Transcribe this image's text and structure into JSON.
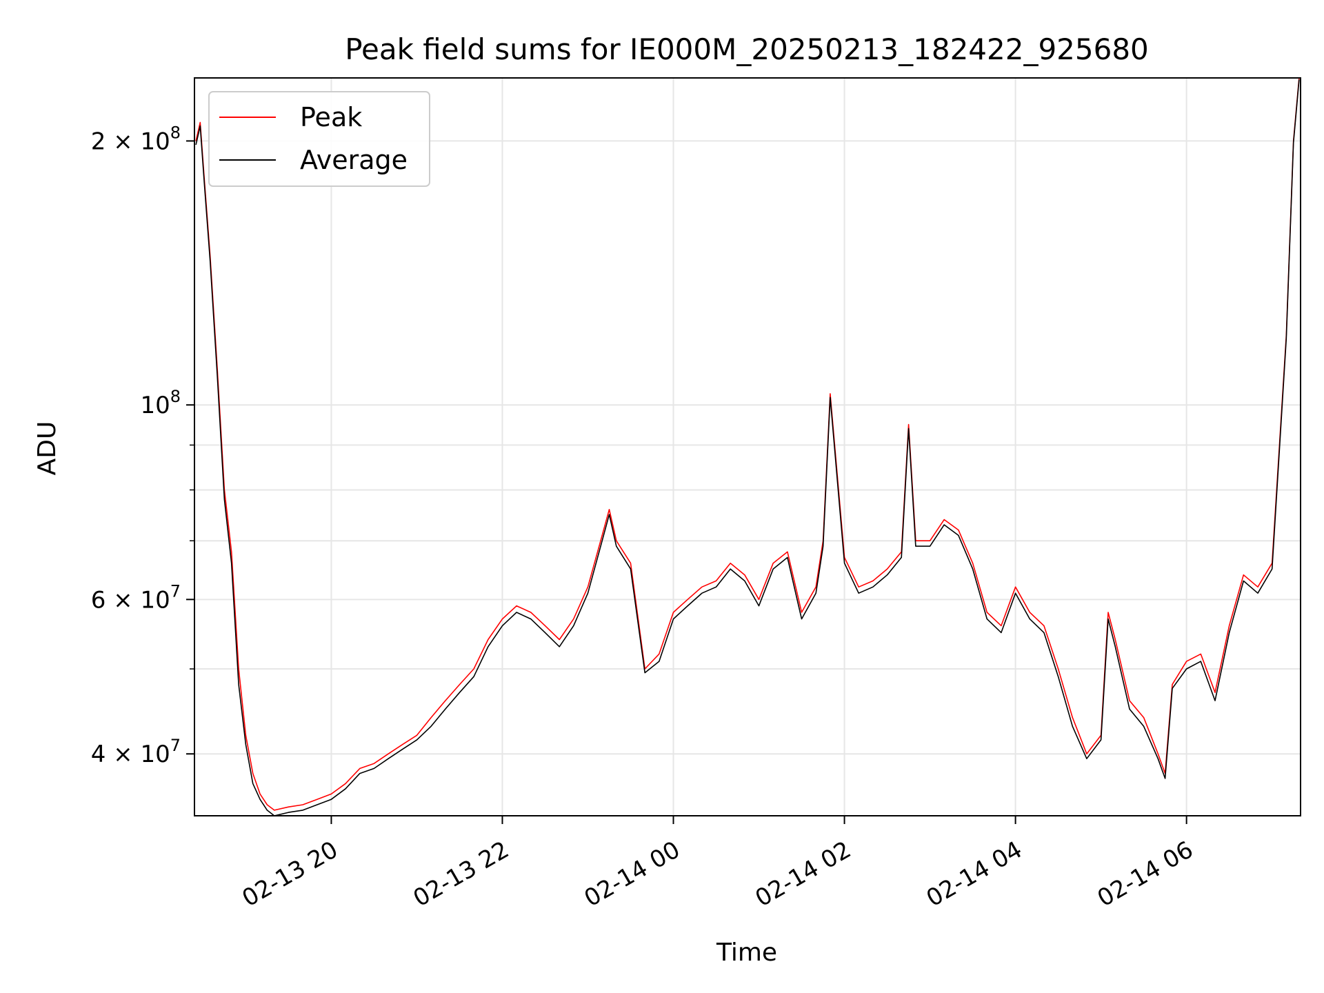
{
  "chart_data": {
    "type": "line",
    "title": "Peak field sums for IE000M_20250213_182422_925680",
    "xlabel": "Time",
    "ylabel": "ADU",
    "yscale": "log",
    "ylim": [
      34000000,
      236000000
    ],
    "xlim": [
      "2025-02-13 18:24",
      "2025-02-14 07:20"
    ],
    "grid": true,
    "legend": "upper left",
    "x_ticks": [
      {
        "t": "2025-02-13 20:00",
        "label": "02-13 20"
      },
      {
        "t": "2025-02-13 22:00",
        "label": "02-13 22"
      },
      {
        "t": "2025-02-14 00:00",
        "label": "02-14 00"
      },
      {
        "t": "2025-02-14 02:00",
        "label": "02-14 02"
      },
      {
        "t": "2025-02-14 04:00",
        "label": "02-14 04"
      },
      {
        "t": "2025-02-14 06:00",
        "label": "02-14 06"
      }
    ],
    "y_major_ticks": [
      {
        "v": 40000000,
        "mant": "4",
        "exp": "7"
      },
      {
        "v": 60000000,
        "mant": "6",
        "exp": "7"
      },
      {
        "v": 100000000,
        "mant": "",
        "exp": "8"
      },
      {
        "v": 200000000,
        "mant": "2",
        "exp": "8"
      }
    ],
    "y_minor_ticks": [
      50000000,
      70000000,
      80000000,
      90000000
    ],
    "series": [
      {
        "name": "Peak",
        "color": "#ff0000",
        "x": [
          "2025-02-13 18:25",
          "2025-02-13 18:28",
          "2025-02-13 18:31",
          "2025-02-13 18:35",
          "2025-02-13 18:40",
          "2025-02-13 18:45",
          "2025-02-13 18:50",
          "2025-02-13 18:55",
          "2025-02-13 19:00",
          "2025-02-13 19:05",
          "2025-02-13 19:10",
          "2025-02-13 19:15",
          "2025-02-13 19:20",
          "2025-02-13 19:30",
          "2025-02-13 19:40",
          "2025-02-13 19:50",
          "2025-02-13 20:00",
          "2025-02-13 20:10",
          "2025-02-13 20:20",
          "2025-02-13 20:30",
          "2025-02-13 20:40",
          "2025-02-13 20:50",
          "2025-02-13 21:00",
          "2025-02-13 21:10",
          "2025-02-13 21:20",
          "2025-02-13 21:30",
          "2025-02-13 21:40",
          "2025-02-13 21:50",
          "2025-02-13 22:00",
          "2025-02-13 22:10",
          "2025-02-13 22:20",
          "2025-02-13 22:30",
          "2025-02-13 22:40",
          "2025-02-13 22:50",
          "2025-02-13 23:00",
          "2025-02-13 23:10",
          "2025-02-13 23:15",
          "2025-02-13 23:20",
          "2025-02-13 23:30",
          "2025-02-13 23:40",
          "2025-02-13 23:50",
          "2025-02-14 00:00",
          "2025-02-14 00:10",
          "2025-02-14 00:20",
          "2025-02-14 00:30",
          "2025-02-14 00:40",
          "2025-02-14 00:50",
          "2025-02-14 01:00",
          "2025-02-14 01:10",
          "2025-02-14 01:20",
          "2025-02-14 01:30",
          "2025-02-14 01:40",
          "2025-02-14 01:45",
          "2025-02-14 01:50",
          "2025-02-14 02:00",
          "2025-02-14 02:10",
          "2025-02-14 02:20",
          "2025-02-14 02:30",
          "2025-02-14 02:40",
          "2025-02-14 02:45",
          "2025-02-14 02:50",
          "2025-02-14 03:00",
          "2025-02-14 03:10",
          "2025-02-14 03:20",
          "2025-02-14 03:30",
          "2025-02-14 03:40",
          "2025-02-14 03:50",
          "2025-02-14 04:00",
          "2025-02-14 04:10",
          "2025-02-14 04:20",
          "2025-02-14 04:30",
          "2025-02-14 04:40",
          "2025-02-14 04:50",
          "2025-02-14 05:00",
          "2025-02-14 05:05",
          "2025-02-14 05:10",
          "2025-02-14 05:20",
          "2025-02-14 05:30",
          "2025-02-14 05:40",
          "2025-02-14 05:45",
          "2025-02-14 05:50",
          "2025-02-14 06:00",
          "2025-02-14 06:10",
          "2025-02-14 06:20",
          "2025-02-14 06:30",
          "2025-02-14 06:40",
          "2025-02-14 06:50",
          "2025-02-14 07:00",
          "2025-02-14 07:10",
          "2025-02-14 07:15",
          "2025-02-14 07:19"
        ],
        "values": [
          200000000,
          210000000,
          180000000,
          148000000,
          110000000,
          80000000,
          68000000,
          50000000,
          42000000,
          38000000,
          36000000,
          35000000,
          34500000,
          34800000,
          35000000,
          35500000,
          36000000,
          37000000,
          38500000,
          39000000,
          40000000,
          41000000,
          42000000,
          44000000,
          46000000,
          48000000,
          50000000,
          54000000,
          57000000,
          59000000,
          58000000,
          56000000,
          54000000,
          57000000,
          62000000,
          71000000,
          76000000,
          70000000,
          66000000,
          50000000,
          52000000,
          58000000,
          60000000,
          62000000,
          63000000,
          66000000,
          64000000,
          60000000,
          66000000,
          68000000,
          58000000,
          62000000,
          70000000,
          103000000,
          67000000,
          62000000,
          63000000,
          65000000,
          68000000,
          95000000,
          70000000,
          70000000,
          74000000,
          72000000,
          66000000,
          58000000,
          56000000,
          62000000,
          58000000,
          56000000,
          50000000,
          44000000,
          40000000,
          42000000,
          58000000,
          54000000,
          46000000,
          44000000,
          40000000,
          38000000,
          48000000,
          51000000,
          52000000,
          47000000,
          56000000,
          64000000,
          62000000,
          66000000,
          120000000,
          200000000,
          236000000
        ]
      },
      {
        "name": "Average",
        "color": "#000000",
        "x": [
          "2025-02-13 18:25",
          "2025-02-13 18:28",
          "2025-02-13 18:31",
          "2025-02-13 18:35",
          "2025-02-13 18:40",
          "2025-02-13 18:45",
          "2025-02-13 18:50",
          "2025-02-13 18:55",
          "2025-02-13 19:00",
          "2025-02-13 19:05",
          "2025-02-13 19:10",
          "2025-02-13 19:15",
          "2025-02-13 19:20",
          "2025-02-13 19:30",
          "2025-02-13 19:40",
          "2025-02-13 19:50",
          "2025-02-13 20:00",
          "2025-02-13 20:10",
          "2025-02-13 20:20",
          "2025-02-13 20:30",
          "2025-02-13 20:40",
          "2025-02-13 20:50",
          "2025-02-13 21:00",
          "2025-02-13 21:10",
          "2025-02-13 21:20",
          "2025-02-13 21:30",
          "2025-02-13 21:40",
          "2025-02-13 21:50",
          "2025-02-13 22:00",
          "2025-02-13 22:10",
          "2025-02-13 22:20",
          "2025-02-13 22:30",
          "2025-02-13 22:40",
          "2025-02-13 22:50",
          "2025-02-13 23:00",
          "2025-02-13 23:10",
          "2025-02-13 23:15",
          "2025-02-13 23:20",
          "2025-02-13 23:30",
          "2025-02-13 23:40",
          "2025-02-13 23:50",
          "2025-02-14 00:00",
          "2025-02-14 00:10",
          "2025-02-14 00:20",
          "2025-02-14 00:30",
          "2025-02-14 00:40",
          "2025-02-14 00:50",
          "2025-02-14 01:00",
          "2025-02-14 01:10",
          "2025-02-14 01:20",
          "2025-02-14 01:30",
          "2025-02-14 01:40",
          "2025-02-14 01:45",
          "2025-02-14 01:50",
          "2025-02-14 02:00",
          "2025-02-14 02:10",
          "2025-02-14 02:20",
          "2025-02-14 02:30",
          "2025-02-14 02:40",
          "2025-02-14 02:45",
          "2025-02-14 02:50",
          "2025-02-14 03:00",
          "2025-02-14 03:10",
          "2025-02-14 03:20",
          "2025-02-14 03:30",
          "2025-02-14 03:40",
          "2025-02-14 03:50",
          "2025-02-14 04:00",
          "2025-02-14 04:10",
          "2025-02-14 04:20",
          "2025-02-14 04:30",
          "2025-02-14 04:40",
          "2025-02-14 04:50",
          "2025-02-14 05:00",
          "2025-02-14 05:05",
          "2025-02-14 05:10",
          "2025-02-14 05:20",
          "2025-02-14 05:30",
          "2025-02-14 05:40",
          "2025-02-14 05:45",
          "2025-02-14 05:50",
          "2025-02-14 06:00",
          "2025-02-14 06:10",
          "2025-02-14 06:20",
          "2025-02-14 06:30",
          "2025-02-14 06:40",
          "2025-02-14 06:50",
          "2025-02-14 07:00",
          "2025-02-14 07:10",
          "2025-02-14 07:15",
          "2025-02-14 07:19"
        ],
        "values": [
          198000000,
          208000000,
          178000000,
          146000000,
          108000000,
          78000000,
          66000000,
          48000000,
          41000000,
          37000000,
          35500000,
          34500000,
          34000000,
          34300000,
          34500000,
          35000000,
          35500000,
          36500000,
          38000000,
          38500000,
          39500000,
          40500000,
          41500000,
          43000000,
          45000000,
          47000000,
          49000000,
          53000000,
          56000000,
          58000000,
          57000000,
          55000000,
          53000000,
          56000000,
          61000000,
          70000000,
          75000000,
          69000000,
          65000000,
          49500000,
          51000000,
          57000000,
          59000000,
          61000000,
          62000000,
          65000000,
          63000000,
          59000000,
          65000000,
          67000000,
          57000000,
          61000000,
          69000000,
          102000000,
          66000000,
          61000000,
          62000000,
          64000000,
          67000000,
          94000000,
          69000000,
          69000000,
          73000000,
          71000000,
          65000000,
          57000000,
          55000000,
          61000000,
          57000000,
          55000000,
          49000000,
          43000000,
          39500000,
          41500000,
          57000000,
          53000000,
          45000000,
          43000000,
          39500000,
          37500000,
          47500000,
          50000000,
          51000000,
          46000000,
          55000000,
          63000000,
          61000000,
          65000000,
          119000000,
          199000000,
          235000000
        ]
      }
    ]
  }
}
